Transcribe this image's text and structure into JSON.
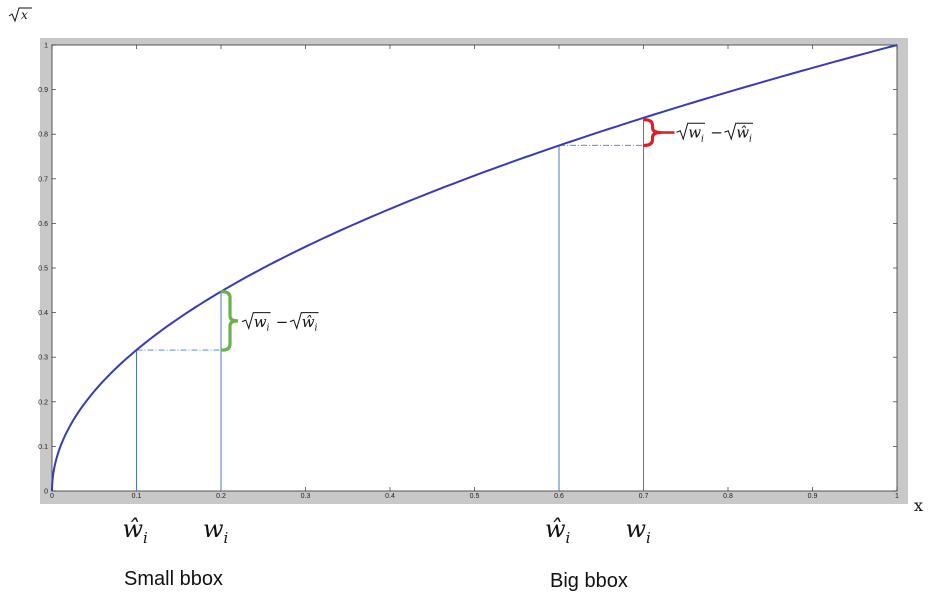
{
  "chart_data": {
    "type": "line",
    "title": "",
    "ylabel": "√x",
    "xlabel": "x",
    "xlim": [
      0,
      1
    ],
    "ylim": [
      0,
      1
    ],
    "grid": false,
    "x_ticks": [
      0,
      0.1,
      0.2,
      0.3,
      0.4,
      0.5,
      0.6,
      0.7,
      0.8,
      0.9,
      1
    ],
    "x_tick_labels": [
      "0",
      "0.1",
      "0.2",
      "0.3",
      "0.4",
      "0.5",
      "0.6",
      "0.7",
      "0.8",
      "0.9",
      "1"
    ],
    "y_ticks": [
      0,
      0.1,
      0.2,
      0.3,
      0.4,
      0.5,
      0.6,
      0.7,
      0.8,
      0.9,
      1
    ],
    "y_tick_labels": [
      "0",
      "0.1",
      "0.2",
      "0.3",
      "0.4",
      "0.5",
      "0.6",
      "0.7",
      "0.8",
      "0.9",
      "1"
    ],
    "series": [
      {
        "function": "sqrt",
        "domain": [
          0,
          1
        ],
        "color": "#3a3ab8"
      }
    ],
    "markers": [
      {
        "group": "small",
        "x_hat": 0.1,
        "y_hat": 0.316,
        "x": 0.2,
        "y": 0.447,
        "brace_color": "#6ab04c"
      },
      {
        "group": "big",
        "x_hat": 0.6,
        "y_hat": 0.775,
        "x": 0.7,
        "y": 0.837,
        "brace_color": "#dd1f26"
      }
    ],
    "annotations": {
      "what_label": "ŵ",
      "w_label": "w",
      "sub_i": "i",
      "diff_label_w": "w",
      "diff_label_minus": "−",
      "diff_label_what": "ŵ"
    },
    "captions": {
      "small": "Small bbox",
      "big": "Big bbox"
    }
  },
  "colors": {
    "frame_bg": "#c8c8c8",
    "plot_bg": "#ffffff",
    "curve": "#3a3ab8",
    "guide": "#4a78c0"
  }
}
